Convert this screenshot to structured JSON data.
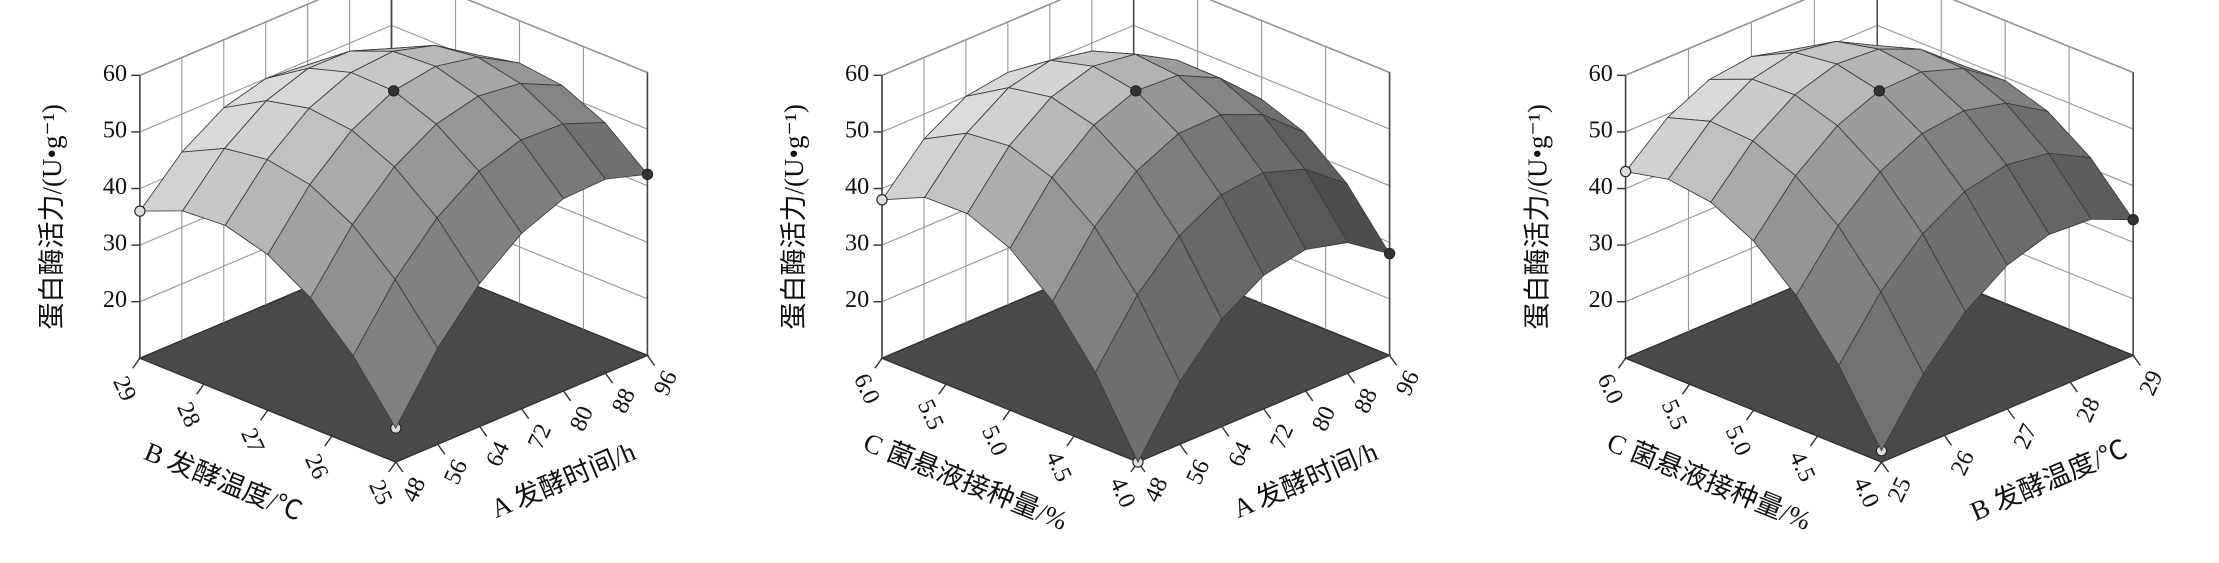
{
  "chart_data": [
    {
      "type": "surface",
      "zlabel": "蛋白酶活力/(U•g⁻¹)",
      "xlabel": "A 发酵时间/h",
      "ylabel": "B 发酵温度/℃",
      "xlim": [
        48,
        96
      ],
      "ylim": [
        25,
        29
      ],
      "zlim": [
        10,
        60
      ],
      "xticks": [
        48,
        56,
        64,
        72,
        80,
        88,
        96
      ],
      "yticks": [
        25,
        26,
        27,
        28,
        29
      ],
      "zticks": [
        20,
        30,
        40,
        50,
        60
      ],
      "z": [
        [
          16.0,
          27.0,
          35.3,
          41.0,
          44.0,
          44.3,
          42.0
        ],
        [
          25.7,
          36.1,
          43.8,
          48.9,
          51.3,
          51.0,
          48.1
        ],
        [
          32.9,
          42.7,
          49.8,
          54.2,
          56.0,
          55.1,
          51.6
        ],
        [
          37.5,
          46.7,
          53.2,
          57.0,
          58.2,
          56.7,
          52.5
        ],
        [
          39.6,
          48.1,
          54.0,
          57.2,
          57.8,
          55.7,
          50.9
        ],
        [
          39.1,
          47.0,
          52.3,
          54.9,
          54.8,
          52.1,
          46.7
        ],
        [
          36.0,
          43.3,
          48.0,
          50.0,
          49.3,
          46.0,
          40.0
        ]
      ],
      "points": {
        "x": [
          48,
          96,
          72,
          48
        ],
        "y": [
          29,
          25,
          27,
          25
        ],
        "z": [
          36,
          42,
          57,
          16
        ]
      }
    },
    {
      "type": "surface",
      "zlabel": "蛋白酶活力/(U•g⁻¹)",
      "xlabel": "A 发酵时间/h",
      "ylabel": "C 菌悬液接种量/%",
      "xlim": [
        48,
        96
      ],
      "ylim": [
        4,
        6
      ],
      "zlim": [
        10,
        60
      ],
      "xticks": [
        48,
        56,
        64,
        72,
        80,
        88,
        96
      ],
      "yticks": [
        {
          "value": 4,
          "label": "4.0"
        },
        4.5,
        {
          "value": 5,
          "label": "5.0"
        },
        5.5,
        {
          "value": 6,
          "label": "6.0"
        }
      ],
      "zticks": [
        20,
        30,
        40,
        50,
        60
      ],
      "z": [
        [
          10.0,
          21.1,
          29.0,
          33.6,
          35.0,
          33.1,
          28.0
        ],
        [
          22.8,
          33.3,
          40.6,
          44.7,
          45.5,
          43.0,
          37.3
        ],
        [
          32.3,
          42.3,
          49.0,
          52.5,
          52.7,
          49.6,
          43.3
        ],
        [
          38.6,
          48.0,
          54.1,
          57.0,
          56.6,
          53.0,
          46.1
        ],
        [
          41.7,
          50.5,
          56.0,
          58.3,
          57.3,
          53.1,
          45.7
        ],
        [
          41.5,
          49.7,
          54.6,
          56.3,
          54.8,
          50.0,
          42.0
        ],
        [
          38.0,
          45.6,
          50.0,
          51.1,
          49.0,
          43.6,
          35.0
        ]
      ],
      "points": {
        "x": [
          48,
          96,
          72,
          48
        ],
        "y": [
          6,
          4,
          5,
          4
        ],
        "z": [
          38,
          28,
          57,
          10
        ]
      }
    },
    {
      "type": "surface",
      "zlabel": "蛋白酶活力/(U•g⁻¹)",
      "xlabel": "B 发酵温度/℃",
      "ylabel": "C 菌悬液接种量/%",
      "xlim": [
        25,
        29
      ],
      "ylim": [
        4,
        6
      ],
      "zlim": [
        10,
        60
      ],
      "xticks": [
        25,
        26,
        27,
        28,
        29
      ],
      "yticks": [
        {
          "value": 4,
          "label": "4.0"
        },
        4.5,
        {
          "value": 5,
          "label": "5.0"
        },
        5.5,
        {
          "value": 6,
          "label": "6.0"
        }
      ],
      "zticks": [
        20,
        30,
        40,
        50,
        60
      ],
      "z": [
        [
          12.0,
          22.5,
          30.3,
          35.4,
          37.7,
          37.2,
          34.0
        ],
        [
          24.0,
          33.9,
          41.0,
          45.3,
          46.9,
          45.8,
          41.9
        ],
        [
          33.3,
          42.5,
          48.9,
          52.5,
          53.4,
          51.6,
          47.0
        ],
        [
          39.9,
          48.3,
          54.0,
          57.0,
          57.2,
          54.7,
          49.4
        ],
        [
          43.7,
          51.4,
          56.4,
          58.7,
          58.2,
          55.0,
          49.0
        ],
        [
          44.7,
          51.8,
          56.1,
          57.7,
          56.5,
          52.6,
          45.9
        ],
        [
          43.0,
          49.4,
          53.0,
          53.9,
          52.0,
          47.4,
          40.0
        ]
      ],
      "points": {
        "x": [
          25,
          29,
          27,
          25
        ],
        "y": [
          6,
          4,
          5,
          4
        ],
        "z": [
          43,
          34,
          57,
          12
        ]
      }
    }
  ]
}
